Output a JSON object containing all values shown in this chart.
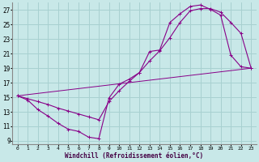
{
  "xlabel": "Windchill (Refroidissement éolien,°C)",
  "xlim": [
    -0.5,
    23.5
  ],
  "ylim": [
    8.5,
    28.0
  ],
  "yticks": [
    9,
    11,
    13,
    15,
    17,
    19,
    21,
    23,
    25,
    27
  ],
  "xticks": [
    0,
    1,
    2,
    3,
    4,
    5,
    6,
    7,
    8,
    9,
    10,
    11,
    12,
    13,
    14,
    15,
    16,
    17,
    18,
    19,
    20,
    21,
    22,
    23
  ],
  "background_color": "#c8e8e8",
  "grid_color": "#a8d0d0",
  "line_color": "#880088",
  "curve1_x": [
    0,
    1,
    2,
    3,
    4,
    5,
    6,
    7,
    8,
    9,
    10,
    11,
    12,
    13,
    14,
    15,
    16,
    17,
    18,
    19,
    20,
    21,
    22,
    23
  ],
  "curve1_y": [
    15.2,
    14.6,
    13.3,
    12.4,
    11.4,
    10.6,
    10.3,
    9.5,
    9.3,
    14.9,
    16.8,
    17.5,
    18.4,
    21.3,
    21.5,
    25.3,
    26.5,
    27.5,
    27.7,
    27.1,
    26.3,
    20.8,
    19.2,
    19.0
  ],
  "curve2_x": [
    0,
    1,
    2,
    3,
    4,
    5,
    6,
    7,
    8,
    9,
    10,
    11,
    12,
    13,
    14,
    15,
    16,
    17,
    18,
    19,
    20,
    21,
    22,
    23
  ],
  "curve2_y": [
    15.2,
    14.8,
    14.4,
    14.0,
    13.5,
    13.1,
    12.7,
    12.3,
    11.9,
    14.4,
    15.9,
    17.2,
    18.4,
    20.0,
    21.4,
    23.2,
    25.3,
    26.9,
    27.2,
    27.2,
    26.7,
    25.3,
    23.8,
    19.0
  ],
  "curve3_x": [
    0,
    23
  ],
  "curve3_y": [
    15.2,
    19.0
  ]
}
